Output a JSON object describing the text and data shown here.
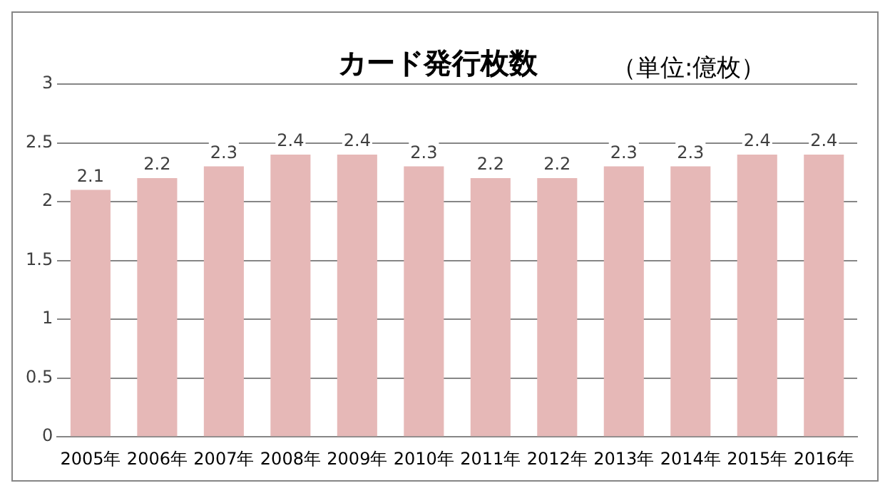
{
  "chart_data": {
    "type": "bar",
    "title": "カード発行枚数",
    "subtitle": "（単位:億枚）",
    "categories": [
      "2005年",
      "2006年",
      "2007年",
      "2008年",
      "2009年",
      "2010年",
      "2011年",
      "2012年",
      "2013年",
      "2014年",
      "2015年",
      "2016年"
    ],
    "values": [
      2.1,
      2.2,
      2.3,
      2.4,
      2.4,
      2.3,
      2.2,
      2.2,
      2.3,
      2.3,
      2.4,
      2.4
    ],
    "color": "#e6b8b7",
    "ylim": [
      0,
      3
    ],
    "yticks": [
      0,
      0.5,
      1,
      1.5,
      2,
      2.5,
      3
    ],
    "grid": "y",
    "data_labels": true
  }
}
